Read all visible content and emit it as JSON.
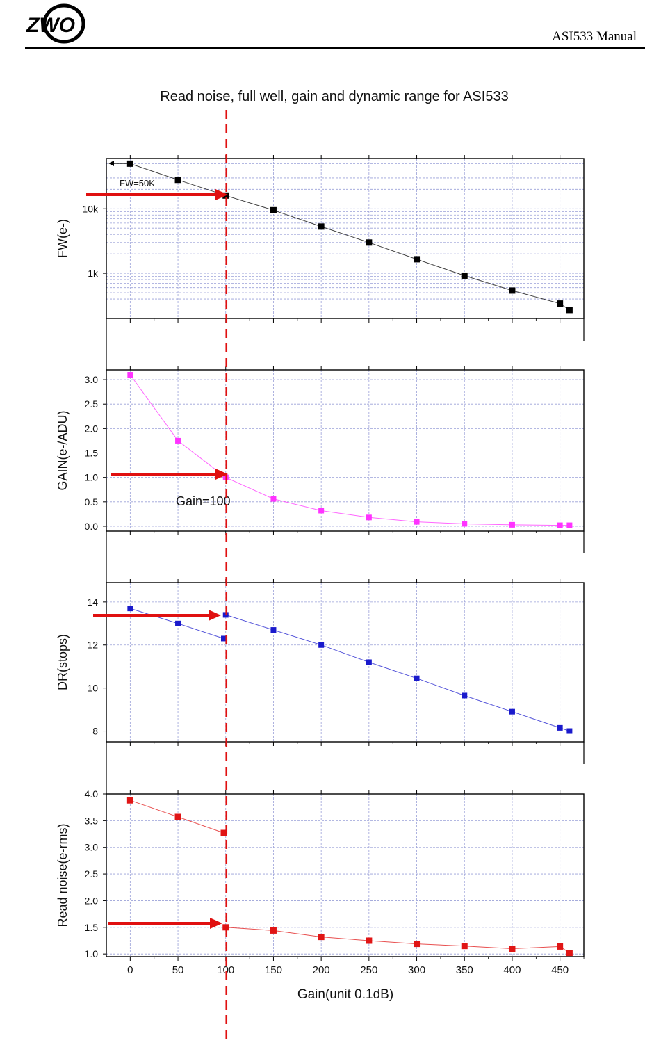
{
  "header": {
    "logo_text": "ZWO",
    "manual_title": "ASI533 Manual"
  },
  "colors": {
    "fw": "#000000",
    "gain": "#ff33ff",
    "dr": "#1a1acc",
    "rn": "#e01515",
    "annotation": "#e01010",
    "grid": "#9aa0d8",
    "frame": "#000000"
  },
  "chart_data": {
    "type": "scatter",
    "title": "Read noise, full well, gain and dynamic range for ASI533",
    "xlabel": "Gain(unit 0.1dB)",
    "xlim": [
      -25,
      475
    ],
    "xticks": [
      0,
      50,
      100,
      150,
      200,
      250,
      300,
      350,
      400,
      450
    ],
    "x": [
      0,
      50,
      100,
      150,
      200,
      250,
      300,
      350,
      400,
      450,
      460
    ],
    "panels": [
      {
        "name": "fw",
        "ylabel": "FW(e-)",
        "scale": "log",
        "ylim": [
          200,
          60000
        ],
        "yticks": [
          1000,
          10000
        ],
        "ytick_labels": [
          "1k",
          "10k"
        ],
        "series": [
          {
            "name": "FW",
            "values": [
              50000,
              28000,
              16000,
              9500,
              5300,
              3000,
              1650,
              920,
              540,
              340,
              270
            ]
          }
        ],
        "annotation": "FW=50K"
      },
      {
        "name": "gain",
        "ylabel": "GAIN(e-/ADU)",
        "scale": "linear",
        "ylim": [
          -0.1,
          3.2
        ],
        "yticks": [
          0.0,
          0.5,
          1.0,
          1.5,
          2.0,
          2.5,
          3.0
        ],
        "ytick_labels": [
          "0.0",
          "0.5",
          "1.0",
          "1.5",
          "2.0",
          "2.5",
          "3.0"
        ],
        "series": [
          {
            "name": "Gain",
            "values": [
              3.1,
              1.75,
              1.0,
              0.56,
              0.32,
              0.18,
              0.09,
              0.05,
              0.03,
              0.02,
              0.02
            ]
          }
        ],
        "annotation": "Gain=100"
      },
      {
        "name": "dr",
        "ylabel": "DR(stops)",
        "scale": "linear",
        "ylim": [
          7.5,
          14.9
        ],
        "yticks": [
          8,
          10,
          12,
          14
        ],
        "ytick_labels": [
          "8",
          "10",
          "12",
          "14"
        ],
        "series": [
          {
            "name": "DR",
            "x": [
              0,
              50,
              98,
              100,
              150,
              200,
              250,
              300,
              350,
              400,
              450,
              460
            ],
            "values": [
              13.7,
              13.0,
              12.3,
              13.4,
              12.7,
              12.0,
              11.2,
              10.45,
              9.65,
              8.9,
              8.15,
              8.0
            ]
          }
        ]
      },
      {
        "name": "rn",
        "ylabel": "Read noise(e-rms)",
        "scale": "linear",
        "ylim": [
          0.95,
          4.0
        ],
        "yticks": [
          1.0,
          1.5,
          2.0,
          2.5,
          3.0,
          3.5,
          4.0
        ],
        "ytick_labels": [
          "1.0",
          "1.5",
          "2.0",
          "2.5",
          "3.0",
          "3.5",
          "4.0"
        ],
        "series": [
          {
            "name": "Read noise",
            "x": [
              0,
              50,
              98,
              100,
              150,
              200,
              250,
              300,
              350,
              400,
              450,
              460
            ],
            "values": [
              3.88,
              3.57,
              3.27,
              1.5,
              1.44,
              1.32,
              1.25,
              1.19,
              1.15,
              1.1,
              1.14,
              1.02
            ]
          }
        ]
      }
    ],
    "marker_line_x": 100
  }
}
